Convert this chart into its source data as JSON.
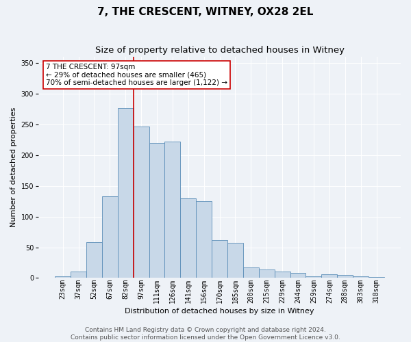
{
  "title": "7, THE CRESCENT, WITNEY, OX28 2EL",
  "subtitle": "Size of property relative to detached houses in Witney",
  "xlabel": "Distribution of detached houses by size in Witney",
  "ylabel": "Number of detached properties",
  "bar_labels": [
    "23sqm",
    "37sqm",
    "52sqm",
    "67sqm",
    "82sqm",
    "97sqm",
    "111sqm",
    "126sqm",
    "141sqm",
    "156sqm",
    "170sqm",
    "185sqm",
    "200sqm",
    "215sqm",
    "229sqm",
    "244sqm",
    "259sqm",
    "274sqm",
    "288sqm",
    "303sqm",
    "318sqm"
  ],
  "bar_heights": [
    3,
    10,
    58,
    133,
    277,
    246,
    220,
    222,
    130,
    125,
    62,
    57,
    17,
    14,
    10,
    8,
    3,
    6,
    5,
    3,
    2
  ],
  "bar_color": "#c8d8e8",
  "bar_edge_color": "#5b8db8",
  "red_line_color": "#cc0000",
  "annotation_text": "7 THE CRESCENT: 97sqm\n← 29% of detached houses are smaller (465)\n70% of semi-detached houses are larger (1,122) →",
  "annotation_box_color": "#ffffff",
  "annotation_box_edge": "#cc0000",
  "footer_line1": "Contains HM Land Registry data © Crown copyright and database right 2024.",
  "footer_line2": "Contains public sector information licensed under the Open Government Licence v3.0.",
  "ylim": [
    0,
    360
  ],
  "yticks": [
    0,
    50,
    100,
    150,
    200,
    250,
    300,
    350
  ],
  "background_color": "#eef2f7",
  "grid_color": "#ffffff",
  "title_fontsize": 11,
  "subtitle_fontsize": 9.5,
  "axis_label_fontsize": 8,
  "tick_fontsize": 7,
  "footer_fontsize": 6.5,
  "annotation_fontsize": 7.5
}
